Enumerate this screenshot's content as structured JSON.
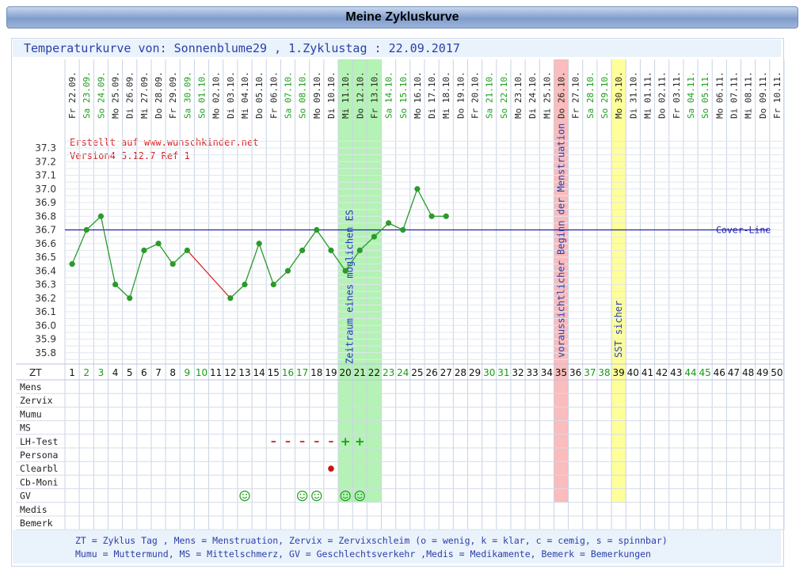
{
  "page": {
    "title": "Meine Zykluskurve",
    "header": "Temperaturkurve von: Sonnenblume29 , 1.Zyklustag : 22.09.2017",
    "watermark": [
      "Erstellt auf www.wunschkinder.net",
      "Version4 5.12.7 Ref 1"
    ],
    "legend": [
      "ZT = Zyklus Tag , Mens = Menstruation, Zervix = Zervixschleim (o = wenig, k = klar, c = cemig, s = spinnbar)",
      "Mumu = Muttermund, MS = Mittelschmerz, GV = Geschlechtsverkehr ,Medis = Medikamente, Bemerk = Bemerkungen"
    ]
  },
  "chart_data": {
    "type": "line",
    "ylim": [
      35.7,
      37.35
    ],
    "y_ticks": [
      "37.3",
      "37.2",
      "37.1",
      "37.0",
      "36.9",
      "36.8",
      "36.7",
      "36.6",
      "36.5",
      "36.4",
      "36.3",
      "36.2",
      "36.1",
      "36.0",
      "35.9",
      "35.8"
    ],
    "dates": [
      "Fr 22.09.",
      "Sa 23.09.",
      "So 24.09.",
      "Mo 25.09.",
      "Di 26.09.",
      "Mi 27.09.",
      "Do 28.09.",
      "Fr 29.09.",
      "Sa 30.09.",
      "So 01.10.",
      "Mo 02.10.",
      "Di 03.10.",
      "Mi 04.10.",
      "Do 05.10.",
      "Fr 06.10.",
      "Sa 07.10.",
      "So 08.10.",
      "Mo 09.10.",
      "Di 10.10.",
      "Mi 11.10.",
      "Do 12.10.",
      "Fr 13.10.",
      "Sa 14.10.",
      "So 15.10.",
      "Mo 16.10.",
      "Di 17.10.",
      "Mi 18.10.",
      "Do 19.10.",
      "Fr 20.10.",
      "Sa 21.10.",
      "So 22.10.",
      "Mo 23.10.",
      "Di 24.10.",
      "Mi 25.10.",
      "Do 26.10.",
      "Fr 27.10.",
      "Sa 28.10.",
      "So 29.10.",
      "Mo 30.10.",
      "Di 31.10.",
      "Mi 01.11.",
      "Do 02.11.",
      "Fr 03.11.",
      "Sa 04.11.",
      "So 05.11.",
      "Mo 06.11.",
      "Di 07.11.",
      "Mi 08.11.",
      "Do 09.11.",
      "Fr 10.11."
    ],
    "x_label": "ZT",
    "temperatures": [
      36.45,
      36.7,
      36.8,
      36.3,
      36.2,
      36.55,
      36.6,
      36.45,
      36.55,
      null,
      null,
      36.2,
      36.3,
      36.6,
      36.3,
      36.4,
      36.55,
      36.7,
      36.55,
      36.4,
      36.55,
      36.65,
      36.75,
      36.7,
      37.0,
      36.8,
      36.8
    ],
    "red_segment_days": [
      9,
      12
    ],
    "cover_line": {
      "value": 36.7,
      "label": "Cover-Line"
    },
    "highlights": [
      {
        "start_day": 20,
        "end_day": 22,
        "color": "#a8f0a8",
        "label": "Zeitraum eines möglichen ES"
      },
      {
        "start_day": 35,
        "end_day": 35,
        "color": "#f9b0b0",
        "label": "voraussichtlicher Beginn der Menstruation"
      },
      {
        "start_day": 39,
        "end_day": 39,
        "color": "#ffff88",
        "label": "SST sicher"
      }
    ],
    "rows": [
      "Mens",
      "Zervix",
      "Mumu",
      "MS",
      "LH-Test",
      "Persona",
      "Clearbl",
      "Cb-Moni",
      "GV",
      "Medis",
      "Bemerk"
    ],
    "lh_test": {
      "minus_days": [
        15,
        16,
        17,
        18,
        19
      ],
      "plus_days": [
        20,
        21
      ]
    },
    "clearblue_dot_days": [
      19
    ],
    "gv_days": [
      13,
      17,
      18,
      20,
      21
    ],
    "colors": {
      "line": "#2a9a2a",
      "line_break": "#dd2222",
      "cover": "#2222aa",
      "weekend": "#169d16",
      "text": "#2b3fa8",
      "red_text": "#d62020"
    }
  }
}
